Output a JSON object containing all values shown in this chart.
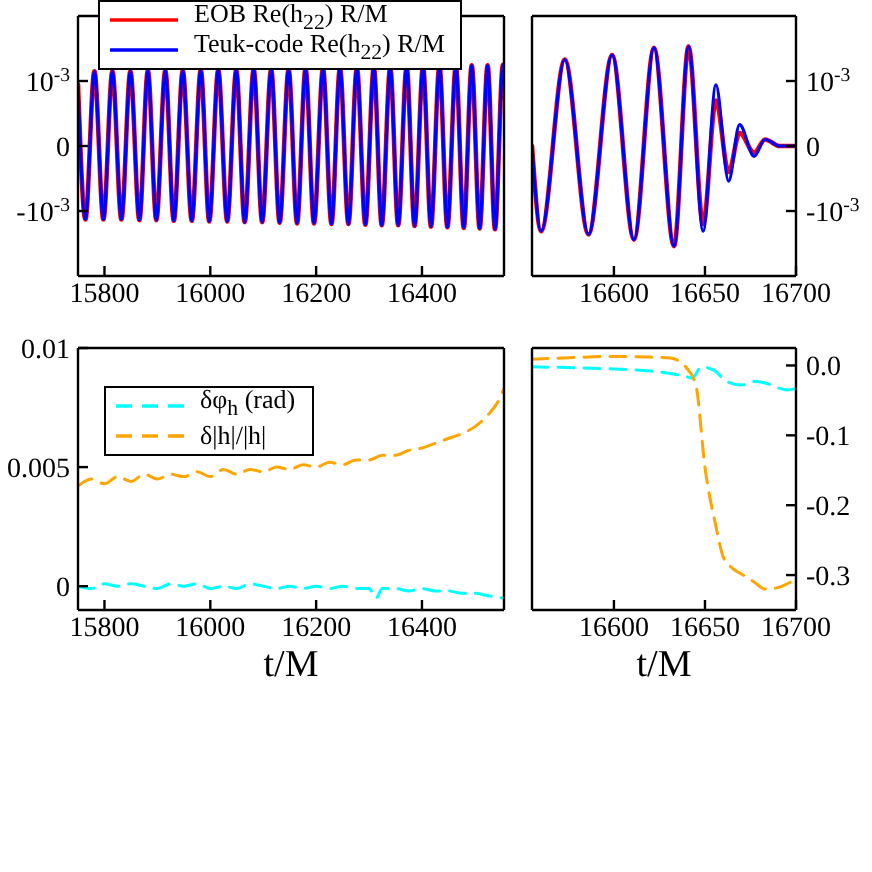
{
  "chart_data": [
    {
      "type": "line",
      "x": [
        15750,
        15764,
        15781,
        15798,
        15815,
        15832,
        15849,
        15866,
        15882,
        15898,
        15915,
        15931,
        15948,
        15965,
        15982,
        15998,
        16015,
        16032,
        16049,
        16065,
        16082,
        16098,
        16115,
        16131,
        16148,
        16164,
        16180,
        16196,
        16213,
        16229,
        16245,
        16261,
        16277,
        16293,
        16309,
        16324,
        16340,
        16355,
        16371,
        16386,
        16402,
        16417,
        16433,
        16448,
        16464,
        16479,
        16494,
        16509,
        16524,
        16538,
        16553,
        16555
      ],
      "series": [
        {
          "name": "EOB Re(h$_{22}$) R/M",
          "color": "#ff0000",
          "values": [
            0.00095,
            -0.00113,
            0.00115,
            -0.00113,
            0.00115,
            -0.00113,
            0.00115,
            -0.00114,
            0.00116,
            -0.00114,
            0.00116,
            -0.00115,
            0.00116,
            -0.00115,
            0.00117,
            -0.00116,
            0.00117,
            -0.00116,
            0.00117,
            -0.00117,
            0.00118,
            -0.00117,
            0.00118,
            -0.00118,
            0.00118,
            -0.00119,
            0.00119,
            -0.00119,
            0.00119,
            -0.0012,
            0.0012,
            -0.0012,
            0.0012,
            -0.00121,
            0.00121,
            -0.00122,
            0.00121,
            -0.00122,
            0.00122,
            -0.00123,
            0.00122,
            -0.00124,
            0.00123,
            -0.00125,
            0.00123,
            -0.00126,
            0.00124,
            -0.00127,
            0.00124,
            -0.00128,
            0.00125,
            0.00124
          ]
        },
        {
          "name": "Teuk-code Re(h$_{22}$) R/M",
          "color": "#0000ff",
          "values": [
            0.00095,
            -0.00113,
            0.00115,
            -0.00113,
            0.00115,
            -0.00113,
            0.00115,
            -0.00114,
            0.00116,
            -0.00114,
            0.00116,
            -0.00115,
            0.00116,
            -0.00115,
            0.00117,
            -0.00116,
            0.00117,
            -0.00116,
            0.00117,
            -0.00117,
            0.00118,
            -0.00117,
            0.00118,
            -0.00118,
            0.00118,
            -0.00119,
            0.00119,
            -0.00119,
            0.00119,
            -0.0012,
            0.0012,
            -0.0012,
            0.0012,
            -0.00121,
            0.00121,
            -0.00122,
            0.00121,
            -0.00122,
            0.00122,
            -0.00123,
            0.00122,
            -0.00124,
            0.00123,
            -0.00125,
            0.00123,
            -0.00126,
            0.00124,
            -0.00127,
            0.00124,
            -0.00128,
            0.00125,
            0.00124
          ]
        }
      ],
      "xlim": [
        15750,
        16555
      ],
      "xticks": [
        15800,
        16000,
        16200,
        16400
      ],
      "ylim": [
        -0.002,
        0.002
      ],
      "yticks": [
        {
          "value": -0.001,
          "label": "-10$^{-3}$"
        },
        0,
        {
          "value": 0.001,
          "label": "10$^{-3}$"
        }
      ],
      "legend": "top left"
    },
    {
      "type": "line",
      "x": [
        16555,
        16560,
        16573,
        16586,
        16599,
        16611,
        16622,
        16633,
        16641,
        16649,
        16656,
        16663,
        16669,
        16677,
        16683,
        16691,
        16700
      ],
      "series": [
        {
          "color": "#ff0000",
          "values": [
            0,
            -0.00131,
            0.00133,
            -0.00136,
            0.0014,
            -0.00144,
            0.00151,
            -0.00154,
            0.00153,
            -0.0012,
            0.0007,
            -0.0004,
            0.0002,
            -0.0001,
            0.0001,
            0,
            0
          ]
        },
        {
          "color": "#0000ff",
          "values": [
            0,
            -0.00131,
            0.00133,
            -0.00136,
            0.0014,
            -0.00144,
            0.00151,
            -0.00154,
            0.00153,
            -0.00131,
            0.00094,
            -0.00054,
            0.00033,
            -0.00016,
            0.0001,
            0,
            0
          ]
        }
      ],
      "xlim": [
        16555,
        16700
      ],
      "xticks": [
        16600,
        16650,
        16700
      ],
      "ylim": [
        -0.002,
        0.002
      ],
      "yticks": [
        {
          "value": -0.001,
          "label": "-10$^{-3}$"
        },
        0,
        {
          "value": 0.001,
          "label": "10$^{-3}$"
        }
      ]
    },
    {
      "type": "line",
      "xlabel": "t/M",
      "line_style": "dashed",
      "legend": "top left",
      "series": [
        {
          "name": "δφ$_{h}$ (rad)",
          "color": "#00ffff",
          "x": [
            15750,
            15775,
            15800,
            15825,
            15850,
            15875,
            15900,
            15925,
            15950,
            15975,
            16000,
            16025,
            16050,
            16075,
            16100,
            16125,
            16150,
            16175,
            16200,
            16225,
            16250,
            16275,
            16300,
            16313,
            16325,
            16350,
            16375,
            16400,
            16425,
            16450,
            16475,
            16500,
            16525,
            16555
          ],
          "values": [
            0,
            -0.0001,
            0.0001,
            0,
            0.0001,
            0,
            -0.0001,
            0.0001,
            0,
            0.0001,
            -0.0001,
            0,
            -0.0001,
            0.0001,
            0,
            -0.0001,
            0,
            -0.0001,
            0,
            -0.0001,
            0,
            -0.0001,
            -0.0001,
            -0.0005,
            -0.0001,
            -0.0001,
            -0.0002,
            -0.0001,
            -0.0002,
            -0.0002,
            -0.0003,
            -0.0003,
            -0.0004,
            -0.0005
          ]
        },
        {
          "name": "δ|h|/|h|",
          "color": "#ffa500",
          "x": [
            15750,
            15775,
            15800,
            15825,
            15850,
            15875,
            15900,
            15925,
            15950,
            15975,
            16000,
            16025,
            16050,
            16075,
            16100,
            16125,
            16150,
            16175,
            16200,
            16225,
            16250,
            16275,
            16300,
            16325,
            16350,
            16375,
            16400,
            16425,
            16450,
            16475,
            16500,
            16525,
            16545,
            16555
          ],
          "values": [
            0.0042,
            0.0045,
            0.0043,
            0.0046,
            0.0044,
            0.0047,
            0.0045,
            0.0047,
            0.0046,
            0.0048,
            0.0046,
            0.0049,
            0.0047,
            0.0049,
            0.0048,
            0.005,
            0.0049,
            0.0051,
            0.005,
            0.0052,
            0.0051,
            0.0053,
            0.0053,
            0.0055,
            0.0055,
            0.0057,
            0.0058,
            0.006,
            0.0062,
            0.0064,
            0.0067,
            0.0072,
            0.0078,
            0.0083
          ]
        }
      ],
      "xlim": [
        15750,
        16555
      ],
      "xticks": [
        15800,
        16000,
        16200,
        16400
      ],
      "ylim": [
        -0.001,
        0.01
      ],
      "yticks": [
        0,
        0.005,
        0.01
      ]
    },
    {
      "type": "line",
      "xlabel": "t/M",
      "line_style": "dashed",
      "series": [
        {
          "color": "#00ffff",
          "x": [
            16555,
            16575,
            16600,
            16620,
            16630,
            16640,
            16643,
            16648,
            16655,
            16662,
            16670,
            16677,
            16683,
            16690,
            16695,
            16700
          ],
          "values": [
            -0.002,
            -0.003,
            -0.005,
            -0.008,
            -0.011,
            -0.016,
            -0.018,
            -0.002,
            -0.007,
            -0.023,
            -0.028,
            -0.023,
            -0.025,
            -0.032,
            -0.035,
            -0.033
          ]
        },
        {
          "color": "#ffa500",
          "x": [
            16555,
            16575,
            16600,
            16620,
            16630,
            16636,
            16640,
            16645,
            16650,
            16656,
            16660,
            16665,
            16671,
            16677,
            16683,
            16690,
            16698,
            16700
          ],
          "values": [
            0.009,
            0.011,
            0.013,
            0.012,
            0.011,
            0.006,
            -0.004,
            -0.028,
            -0.146,
            -0.23,
            -0.274,
            -0.29,
            -0.3,
            -0.31,
            -0.32,
            -0.318,
            -0.309,
            -0.307
          ]
        }
      ],
      "xlim": [
        16555,
        16700
      ],
      "xticks": [
        16600,
        16650,
        16700
      ],
      "ylim": [
        -0.35,
        0.025
      ],
      "yticks": [
        {
          "value": 0,
          "label": "0.0"
        },
        -0.1,
        -0.2,
        -0.3
      ]
    }
  ]
}
